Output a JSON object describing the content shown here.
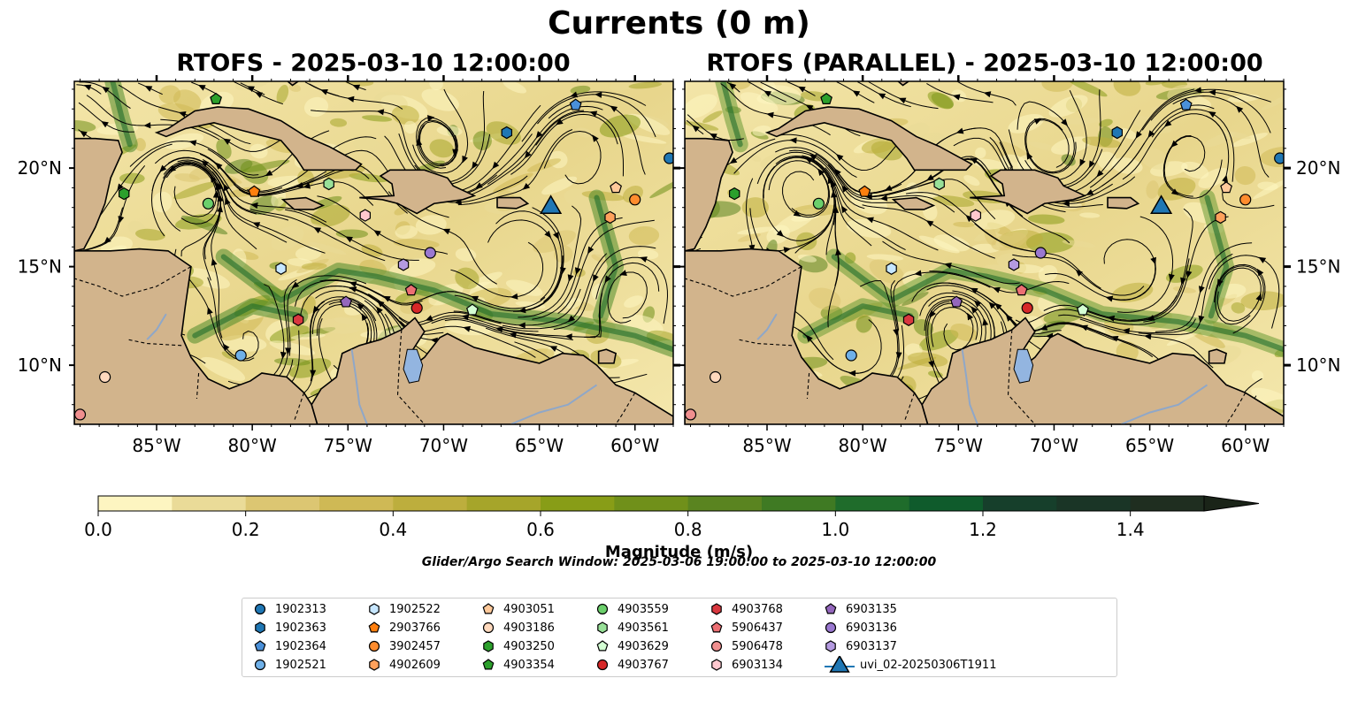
{
  "title": "Currents (0 m)",
  "panels": [
    {
      "title": "RTOFS - 2025-03-10 12:00:00"
    },
    {
      "title": "RTOFS (PARALLEL) - 2025-03-10 12:00:00"
    }
  ],
  "map": {
    "lon_range": [
      -89.3,
      -58.0
    ],
    "lat_range": [
      7.0,
      24.4
    ],
    "lon_ticks": [
      "85°W",
      "80°W",
      "75°W",
      "70°W",
      "65°W",
      "60°W"
    ],
    "lat_ticks": [
      "10°N",
      "15°N",
      "20°N"
    ]
  },
  "colorbar": {
    "label": "Magnitude (m/s)",
    "range": [
      0.0,
      1.5
    ],
    "extend": "max",
    "ticks": [
      "0.0",
      "0.2",
      "0.4",
      "0.6",
      "0.8",
      "1.0",
      "1.2",
      "1.4"
    ],
    "colors": [
      "#fdf5c1",
      "#eadb98",
      "#dcc672",
      "#cfb955",
      "#bdae3d",
      "#a6a52a",
      "#889d17",
      "#70901a",
      "#5a8420",
      "#3f7a23",
      "#1f6c2b",
      "#0f5b2c",
      "#163f2b",
      "#1a3526",
      "#1f2e20"
    ]
  },
  "search_window": "Glider/Argo Search Window: 2025-03-06 19:00:00 to 2025-03-10 12:00:00",
  "chart_data": {
    "type": "scatter",
    "title": "Currents (0 m)",
    "xlabel": "",
    "ylabel": "",
    "xlim": [
      -89.3,
      -58.0
    ],
    "ylim": [
      7.0,
      24.4
    ],
    "series": [
      {
        "name": "1902313",
        "marker": "circle",
        "color": "#1f77b4",
        "x": [
          -58.2
        ],
        "y": [
          20.5
        ]
      },
      {
        "name": "1902363",
        "marker": "hexagon",
        "color": "#1f77b4",
        "x": [
          -66.7
        ],
        "y": [
          21.8
        ]
      },
      {
        "name": "1902364",
        "marker": "pentagon",
        "color": "#4a90d9",
        "x": [
          -63.1
        ],
        "y": [
          23.2
        ]
      },
      {
        "name": "1902521",
        "marker": "circle",
        "color": "#6fb0e8",
        "x": [
          -80.6
        ],
        "y": [
          10.5
        ]
      },
      {
        "name": "1902522",
        "marker": "hexagon",
        "color": "#c6e6ff",
        "x": [
          -78.5
        ],
        "y": [
          14.9
        ]
      },
      {
        "name": "2903766",
        "marker": "pentagon",
        "color": "#ff7f0e",
        "x": [
          -79.9
        ],
        "y": [
          18.8
        ]
      },
      {
        "name": "3902457",
        "marker": "circle",
        "color": "#ff8c2e",
        "x": [
          -60.0
        ],
        "y": [
          18.4
        ]
      },
      {
        "name": "4902609",
        "marker": "hexagon",
        "color": "#ffa15c",
        "x": [
          -61.3
        ],
        "y": [
          17.5
        ]
      },
      {
        "name": "4903051",
        "marker": "pentagon",
        "color": "#ffc99a",
        "x": [
          -61.0
        ],
        "y": [
          19.0
        ]
      },
      {
        "name": "4903186",
        "marker": "circle",
        "color": "#ffd9bd",
        "x": [
          -87.7
        ],
        "y": [
          9.4
        ]
      },
      {
        "name": "4903250",
        "marker": "hexagon",
        "color": "#2ca02c",
        "x": [
          -86.7
        ],
        "y": [
          18.7
        ]
      },
      {
        "name": "4903354",
        "marker": "pentagon",
        "color": "#2ca02c",
        "x": [
          -81.9
        ],
        "y": [
          23.5
        ]
      },
      {
        "name": "4903559",
        "marker": "circle",
        "color": "#6bcf6b",
        "x": [
          -82.3
        ],
        "y": [
          18.2
        ]
      },
      {
        "name": "4903561",
        "marker": "hexagon",
        "color": "#98e098",
        "x": [
          -76.0
        ],
        "y": [
          19.2
        ]
      },
      {
        "name": "4903629",
        "marker": "pentagon",
        "color": "#d4ffd4",
        "x": [
          -68.5
        ],
        "y": [
          12.8
        ]
      },
      {
        "name": "4903767",
        "marker": "circle",
        "color": "#d62728",
        "x": [
          -71.4
        ],
        "y": [
          12.9
        ]
      },
      {
        "name": "4903768",
        "marker": "hexagon",
        "color": "#d9383f",
        "x": [
          -77.6
        ],
        "y": [
          12.3
        ]
      },
      {
        "name": "5906437",
        "marker": "pentagon",
        "color": "#ec6f73",
        "x": [
          -71.7
        ],
        "y": [
          13.8
        ]
      },
      {
        "name": "5906478",
        "marker": "circle",
        "color": "#f08f8f",
        "x": [
          -89.0
        ],
        "y": [
          7.5
        ]
      },
      {
        "name": "6903134",
        "marker": "hexagon",
        "color": "#ffc8cf",
        "x": [
          -74.1
        ],
        "y": [
          17.6
        ]
      },
      {
        "name": "6903135",
        "marker": "pentagon",
        "color": "#9467bd",
        "x": [
          -75.1
        ],
        "y": [
          13.2
        ]
      },
      {
        "name": "6903136",
        "marker": "circle",
        "color": "#9a78d0",
        "x": [
          -70.7
        ],
        "y": [
          15.7
        ]
      },
      {
        "name": "6903137",
        "marker": "hexagon",
        "color": "#b49ae0",
        "x": [
          -72.1
        ],
        "y": [
          15.1
        ]
      },
      {
        "name": "uvi_02-20250306T1911",
        "marker": "triangle",
        "color": "#1f77b4",
        "x": [
          -64.4
        ],
        "y": [
          18.0
        ]
      }
    ]
  }
}
